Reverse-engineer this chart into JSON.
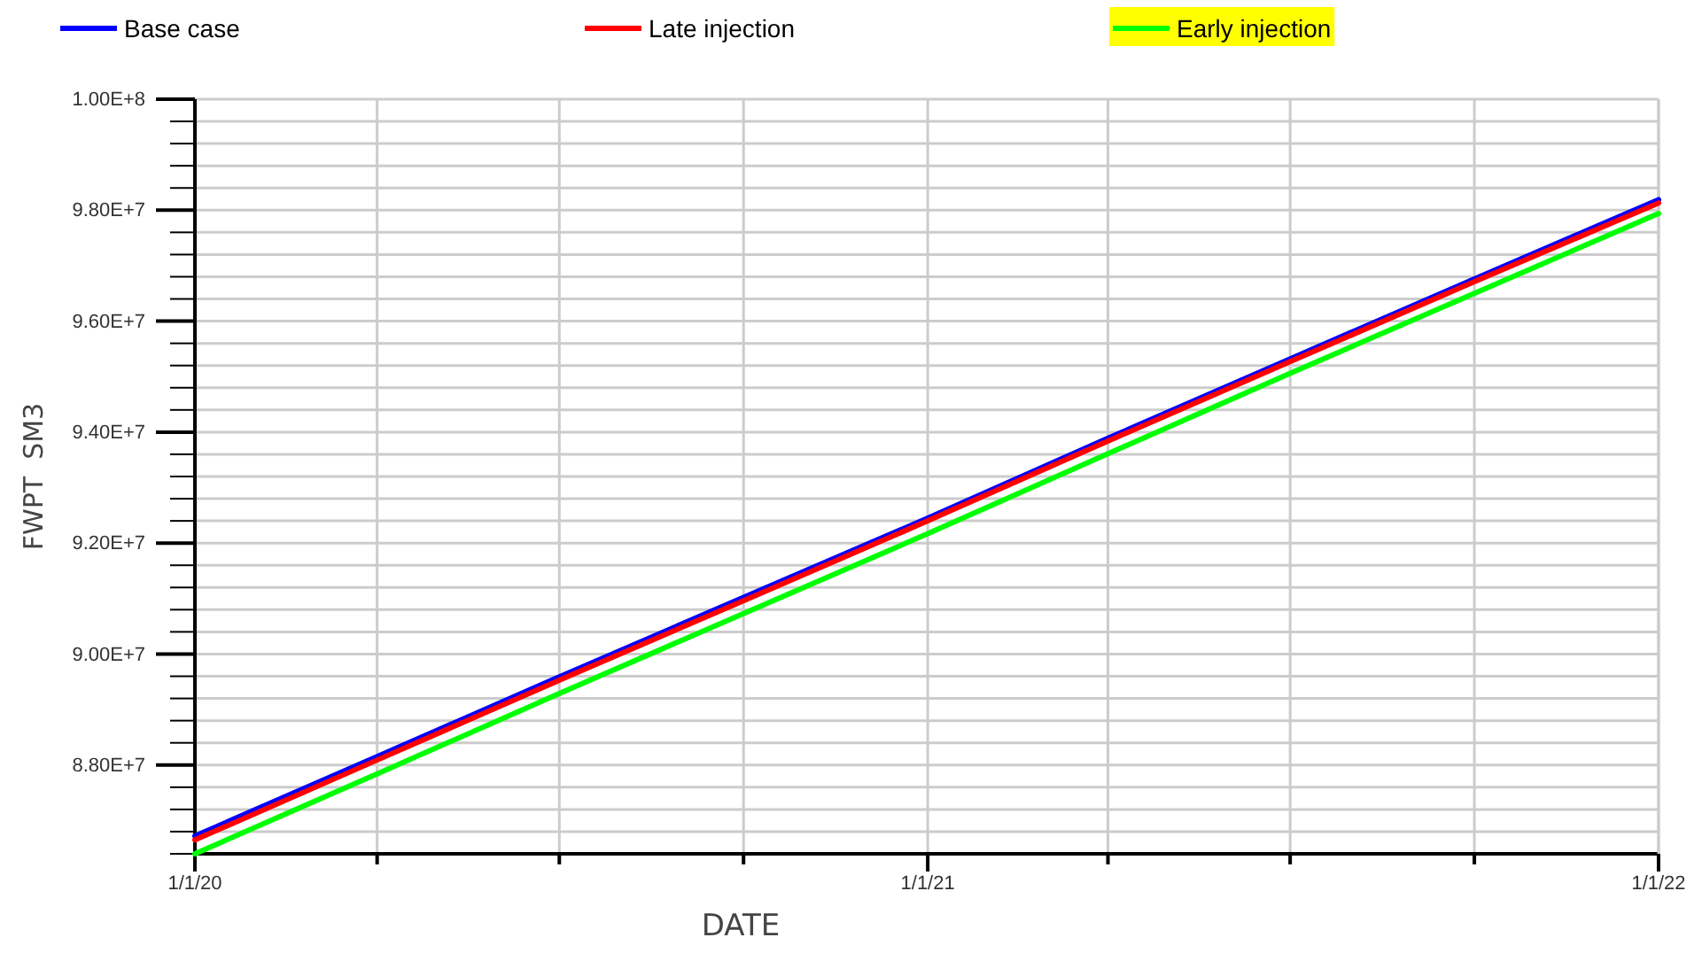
{
  "chart_data": {
    "type": "line",
    "xlabel": "DATE",
    "ylabel": "FWPT  SM3",
    "x": [
      "2020-01-01",
      "2020-04-01",
      "2020-07-01",
      "2020-10-01",
      "2021-01-01",
      "2021-04-01",
      "2021-07-01",
      "2021-10-01",
      "2022-01-01"
    ],
    "series": [
      {
        "name": "Base case",
        "color": "#0000ff",
        "values": [
          86720000,
          88150000,
          89590000,
          91020000,
          92450000,
          93890000,
          95320000,
          96760000,
          98190000
        ]
      },
      {
        "name": "Late injection",
        "color": "#ff0000",
        "values": [
          86650000,
          88090000,
          89530000,
          90960000,
          92400000,
          93840000,
          95270000,
          96710000,
          98130000
        ]
      },
      {
        "name": "Early injection",
        "color": "#00ff00",
        "values": [
          86400000,
          87840000,
          89290000,
          90730000,
          92170000,
          93610000,
          95060000,
          96500000,
          97940000
        ]
      }
    ],
    "xlim": [
      "2020-01-01",
      "2022-01-01"
    ],
    "xticks": [
      {
        "value": "2020-01-01",
        "label": "1/1/20"
      },
      {
        "value": "2020-04-01",
        "label": null
      },
      {
        "value": "2020-07-01",
        "label": null
      },
      {
        "value": "2020-10-01",
        "label": null
      },
      {
        "value": "2021-01-01",
        "label": "1/1/21"
      },
      {
        "value": "2021-04-01",
        "label": null
      },
      {
        "value": "2021-07-01",
        "label": null
      },
      {
        "value": "2021-10-01",
        "label": null
      },
      {
        "value": "2022-01-01",
        "label": "1/1/22"
      }
    ],
    "ylim": [
      86400000,
      100000000
    ],
    "yticks": [
      {
        "value": 86400000,
        "label": null
      },
      {
        "value": 86800000,
        "label": null
      },
      {
        "value": 87200000,
        "label": null
      },
      {
        "value": 87600000,
        "label": null
      },
      {
        "value": 88000000,
        "label": "8.80E+7"
      },
      {
        "value": 88400000,
        "label": null
      },
      {
        "value": 88800000,
        "label": null
      },
      {
        "value": 89200000,
        "label": null
      },
      {
        "value": 89600000,
        "label": null
      },
      {
        "value": 90000000,
        "label": "9.00E+7"
      },
      {
        "value": 90400000,
        "label": null
      },
      {
        "value": 90800000,
        "label": null
      },
      {
        "value": 91200000,
        "label": null
      },
      {
        "value": 91600000,
        "label": null
      },
      {
        "value": 92000000,
        "label": "9.20E+7"
      },
      {
        "value": 92400000,
        "label": null
      },
      {
        "value": 92800000,
        "label": null
      },
      {
        "value": 93200000,
        "label": null
      },
      {
        "value": 93600000,
        "label": null
      },
      {
        "value": 94000000,
        "label": "9.40E+7"
      },
      {
        "value": 94400000,
        "label": null
      },
      {
        "value": 94800000,
        "label": null
      },
      {
        "value": 95200000,
        "label": null
      },
      {
        "value": 95600000,
        "label": null
      },
      {
        "value": 96000000,
        "label": "9.60E+7"
      },
      {
        "value": 96400000,
        "label": null
      },
      {
        "value": 96800000,
        "label": null
      },
      {
        "value": 97200000,
        "label": null
      },
      {
        "value": 97600000,
        "label": null
      },
      {
        "value": 98000000,
        "label": "9.80E+7"
      },
      {
        "value": 98400000,
        "label": null
      },
      {
        "value": 98800000,
        "label": null
      },
      {
        "value": 99200000,
        "label": null
      },
      {
        "value": 99600000,
        "label": null
      },
      {
        "value": 100000000,
        "label": "1.00E+8"
      }
    ],
    "grid": true,
    "legend": "top",
    "marker": "none",
    "line_style": "solid"
  }
}
